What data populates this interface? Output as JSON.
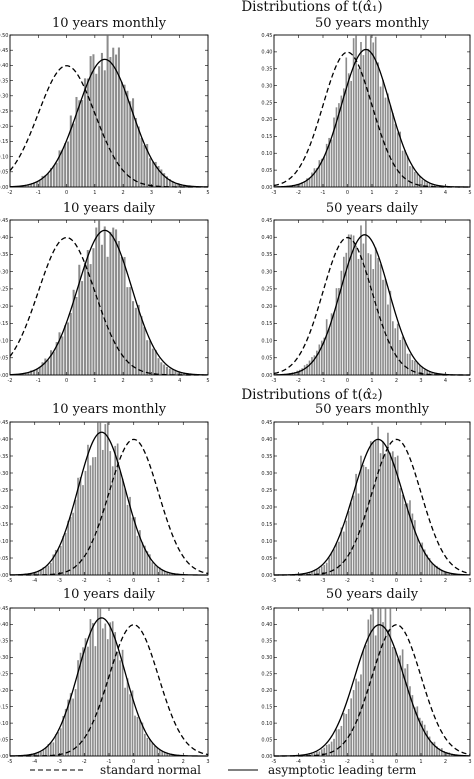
{
  "section_titles": [
    "Distributions of t(α̂₁)",
    "Distributions of t(α̂₂)"
  ],
  "legend": {
    "dashed_label": "standard normal",
    "solid_label": "asymptotic leading term"
  },
  "colors": {
    "bars": "#8c8c8c",
    "curves": "#000000"
  },
  "chart_data": [
    {
      "type": "bar",
      "section": 0,
      "title": "10 years monthly",
      "xlim": [
        -2,
        5
      ],
      "xticks": [
        -2,
        -1,
        0,
        1,
        2,
        3,
        4,
        5
      ],
      "ylim": [
        0,
        0.5
      ],
      "yticks": [
        0,
        0.05,
        0.1,
        0.15,
        0.2,
        0.25,
        0.3,
        0.35,
        0.4,
        0.45,
        0.5
      ],
      "series": [
        {
          "style": "histogram",
          "center": 1.35,
          "sd": 0.95,
          "peak": 0.46,
          "bin_width": 0.1
        },
        {
          "style": "dashed",
          "mean": 0,
          "sd": 1
        },
        {
          "style": "solid",
          "mean": 1.35,
          "sd": 0.95
        }
      ]
    },
    {
      "type": "bar",
      "section": 0,
      "title": "50 years monthly",
      "xlim": [
        -3,
        5
      ],
      "xticks": [
        -3,
        -2,
        -1,
        0,
        1,
        2,
        3,
        4,
        5
      ],
      "ylim": [
        0,
        0.45
      ],
      "yticks": [
        0,
        0.05,
        0.1,
        0.15,
        0.2,
        0.25,
        0.3,
        0.35,
        0.4,
        0.45
      ],
      "series": [
        {
          "style": "histogram",
          "center": 0.7,
          "sd": 0.98,
          "peak": 0.44,
          "bin_width": 0.1
        },
        {
          "style": "dashed",
          "mean": 0,
          "sd": 1
        },
        {
          "style": "solid",
          "mean": 0.75,
          "sd": 0.98
        }
      ]
    },
    {
      "type": "bar",
      "section": 0,
      "title": "10 years daily",
      "xlim": [
        -2,
        5
      ],
      "xticks": [
        -2,
        -1,
        0,
        1,
        2,
        3,
        4,
        5
      ],
      "ylim": [
        0,
        0.45
      ],
      "yticks": [
        0,
        0.05,
        0.1,
        0.15,
        0.2,
        0.25,
        0.3,
        0.35,
        0.4,
        0.45
      ],
      "series": [
        {
          "style": "histogram",
          "center": 1.3,
          "sd": 0.95,
          "peak": 0.42,
          "bin_width": 0.1
        },
        {
          "style": "dashed",
          "mean": 0,
          "sd": 1
        },
        {
          "style": "solid",
          "mean": 1.35,
          "sd": 0.95
        }
      ]
    },
    {
      "type": "bar",
      "section": 0,
      "title": "50 years daily",
      "xlim": [
        -3,
        5
      ],
      "xticks": [
        -3,
        -2,
        -1,
        0,
        1,
        2,
        3,
        4,
        5
      ],
      "ylim": [
        0,
        0.45
      ],
      "yticks": [
        0,
        0.05,
        0.1,
        0.15,
        0.2,
        0.25,
        0.3,
        0.35,
        0.4,
        0.45
      ],
      "series": [
        {
          "style": "histogram",
          "center": 0.6,
          "sd": 1.0,
          "peak": 0.41,
          "bin_width": 0.1
        },
        {
          "style": "dashed",
          "mean": 0,
          "sd": 1
        },
        {
          "style": "solid",
          "mean": 0.7,
          "sd": 0.98
        }
      ]
    },
    {
      "type": "bar",
      "section": 1,
      "title": "10 years monthly",
      "xlim": [
        -5,
        3
      ],
      "xticks": [
        -5,
        -4,
        -3,
        -2,
        -1,
        0,
        1,
        2,
        3
      ],
      "ylim": [
        0,
        0.45
      ],
      "yticks": [
        0,
        0.05,
        0.1,
        0.15,
        0.2,
        0.25,
        0.3,
        0.35,
        0.4,
        0.45
      ],
      "series": [
        {
          "style": "histogram",
          "center": -1.3,
          "sd": 0.95,
          "peak": 0.43,
          "bin_width": 0.1
        },
        {
          "style": "dashed",
          "mean": 0,
          "sd": 1
        },
        {
          "style": "solid",
          "mean": -1.3,
          "sd": 0.95
        }
      ]
    },
    {
      "type": "bar",
      "section": 1,
      "title": "50 years monthly",
      "xlim": [
        -5,
        3
      ],
      "xticks": [
        -5,
        -4,
        -3,
        -2,
        -1,
        0,
        1,
        2,
        3
      ],
      "ylim": [
        0,
        0.45
      ],
      "yticks": [
        0,
        0.05,
        0.1,
        0.15,
        0.2,
        0.25,
        0.3,
        0.35,
        0.4,
        0.45
      ],
      "series": [
        {
          "style": "histogram",
          "center": -0.7,
          "sd": 1.0,
          "peak": 0.41,
          "bin_width": 0.1
        },
        {
          "style": "dashed",
          "mean": 0,
          "sd": 1
        },
        {
          "style": "solid",
          "mean": -0.75,
          "sd": 1.0
        }
      ]
    },
    {
      "type": "bar",
      "section": 1,
      "title": "10 years daily",
      "xlim": [
        -5,
        3
      ],
      "xticks": [
        -5,
        -4,
        -3,
        -2,
        -1,
        0,
        1,
        2,
        3
      ],
      "ylim": [
        0,
        0.45
      ],
      "yticks": [
        0,
        0.05,
        0.1,
        0.15,
        0.2,
        0.25,
        0.3,
        0.35,
        0.4,
        0.45
      ],
      "series": [
        {
          "style": "histogram",
          "center": -1.3,
          "sd": 0.95,
          "peak": 0.41,
          "bin_width": 0.1
        },
        {
          "style": "dashed",
          "mean": 0,
          "sd": 1
        },
        {
          "style": "solid",
          "mean": -1.3,
          "sd": 0.95
        }
      ]
    },
    {
      "type": "bar",
      "section": 1,
      "title": "50 years daily",
      "xlim": [
        -5,
        3
      ],
      "xticks": [
        -5,
        -4,
        -3,
        -2,
        -1,
        0,
        1,
        2,
        3
      ],
      "ylim": [
        0,
        0.45
      ],
      "yticks": [
        0,
        0.05,
        0.1,
        0.15,
        0.2,
        0.25,
        0.3,
        0.35,
        0.4,
        0.45
      ],
      "series": [
        {
          "style": "histogram",
          "center": -0.6,
          "sd": 1.0,
          "peak": 0.42,
          "bin_width": 0.1
        },
        {
          "style": "dashed",
          "mean": 0,
          "sd": 1
        },
        {
          "style": "solid",
          "mean": -0.7,
          "sd": 1.0
        }
      ]
    }
  ]
}
